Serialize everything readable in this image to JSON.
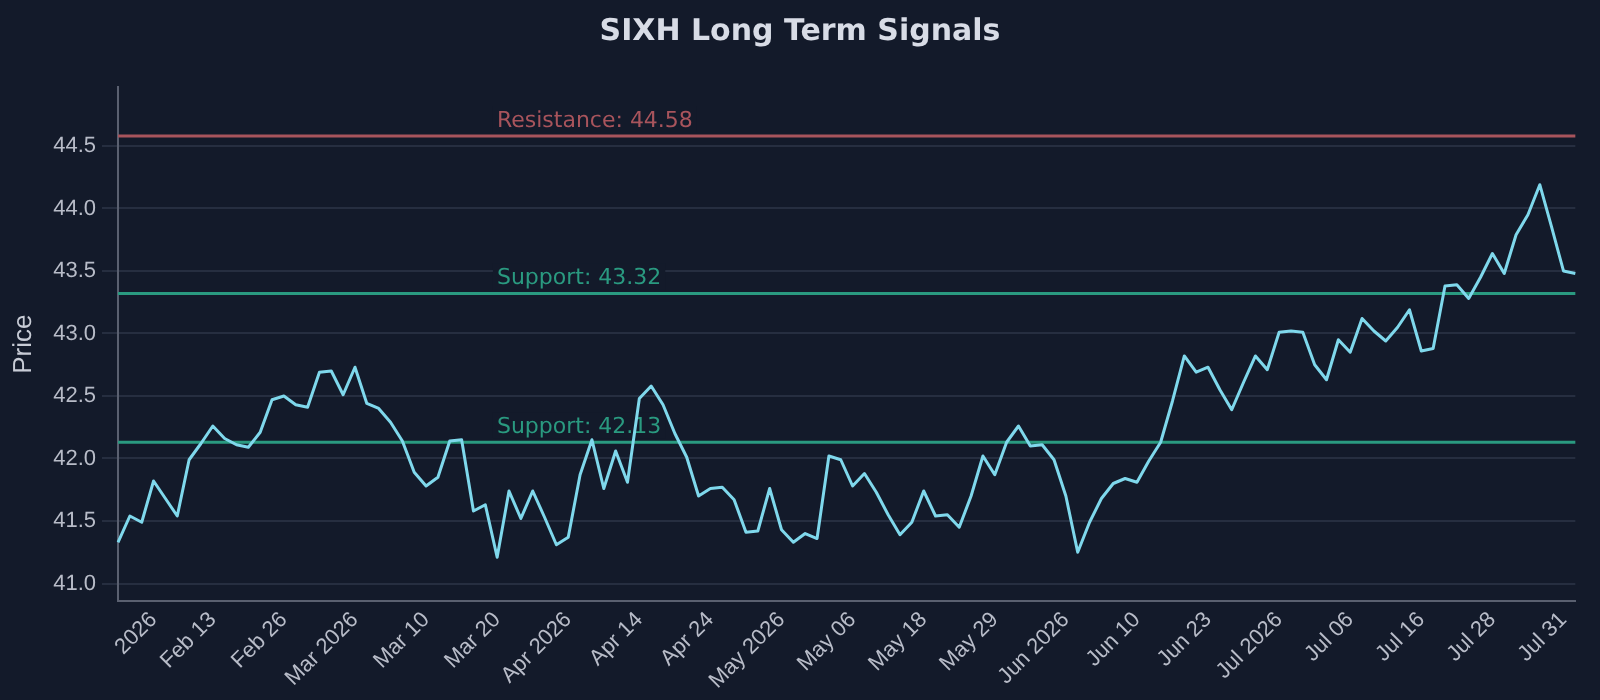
{
  "chart_data": {
    "type": "line",
    "title": "SIXH Long Term Signals",
    "ylabel": "Price",
    "categories": [
      null,
      null,
      null,
      "2026",
      null,
      null,
      null,
      null,
      "Feb 13",
      null,
      null,
      null,
      null,
      null,
      "Feb 26",
      null,
      null,
      null,
      null,
      null,
      "Mar 2026",
      null,
      null,
      null,
      null,
      null,
      "Mar 10",
      null,
      null,
      null,
      null,
      null,
      "Mar 20",
      null,
      null,
      null,
      null,
      null,
      "Apr 2026",
      null,
      null,
      null,
      null,
      null,
      "Apr 14",
      null,
      null,
      null,
      null,
      null,
      "Apr 24",
      null,
      null,
      null,
      null,
      null,
      "May 2026",
      null,
      null,
      null,
      null,
      null,
      "May 06",
      null,
      null,
      null,
      null,
      null,
      "May 18",
      null,
      null,
      null,
      null,
      null,
      "May 29",
      null,
      null,
      null,
      null,
      null,
      "Jun 2026",
      null,
      null,
      null,
      null,
      null,
      "Jun 10",
      null,
      null,
      null,
      null,
      null,
      "Jun 23",
      null,
      null,
      null,
      null,
      null,
      "Jul 2026",
      null,
      null,
      null,
      null,
      null,
      "Jul 06",
      null,
      null,
      null,
      null,
      null,
      "Jul 16",
      null,
      null,
      null,
      null,
      null,
      "Jul 28",
      null,
      null,
      null,
      null,
      null,
      "Jul 31",
      null
    ],
    "series": [
      {
        "color": "#7fd8ec",
        "values": [
          41.33,
          41.54,
          41.49,
          41.82,
          41.68,
          41.54,
          41.99,
          42.12,
          42.26,
          42.16,
          42.11,
          42.09,
          42.21,
          42.47,
          42.5,
          42.43,
          42.41,
          42.69,
          42.7,
          42.51,
          42.73,
          42.44,
          42.4,
          42.29,
          42.14,
          41.89,
          41.78,
          41.85,
          42.14,
          42.15,
          41.58,
          41.63,
          41.21,
          41.74,
          41.52,
          41.74,
          41.53,
          41.31,
          41.37,
          41.87,
          42.15,
          41.76,
          42.06,
          41.81,
          42.48,
          42.58,
          42.43,
          42.2,
          42.01,
          41.7,
          41.76,
          41.77,
          41.67,
          41.41,
          41.42,
          41.76,
          41.43,
          41.33,
          41.4,
          41.36,
          42.02,
          41.99,
          41.78,
          41.88,
          41.73,
          41.55,
          41.39,
          41.49,
          41.74,
          41.54,
          41.55,
          41.45,
          41.7,
          42.02,
          41.87,
          42.13,
          42.26,
          42.1,
          42.11,
          41.99,
          41.7,
          41.25,
          41.49,
          41.68,
          41.8,
          41.84,
          41.81,
          41.98,
          42.13,
          42.46,
          42.82,
          42.69,
          42.73,
          42.55,
          42.39,
          42.61,
          42.82,
          42.71,
          43.01,
          43.02,
          43.01,
          42.75,
          42.63,
          42.95,
          42.85,
          43.12,
          43.02,
          42.94,
          43.05,
          43.19,
          42.86,
          42.88,
          43.38,
          43.39,
          43.28,
          43.45,
          43.64,
          43.48,
          43.79,
          43.95,
          44.19,
          43.85,
          43.5,
          43.48
        ]
      }
    ],
    "ylim": [
      40.86,
      44.97
    ],
    "yticks": [
      {
        "value": 41,
        "label": "41.0"
      },
      {
        "value": 41.5,
        "label": "41.5"
      },
      {
        "value": 42,
        "label": "42.0"
      },
      {
        "value": 42.5,
        "label": "42.5"
      },
      {
        "value": 43,
        "label": "43.0"
      },
      {
        "value": 43.5,
        "label": "43.5"
      },
      {
        "value": 44,
        "label": "44.0"
      },
      {
        "value": 44.5,
        "label": "44.5"
      }
    ],
    "ref_lines": [
      {
        "axis": "y",
        "value": 44.58,
        "label": "Resistance: 44.58",
        "color": "#a8545c"
      },
      {
        "axis": "y",
        "value": 43.32,
        "label": "Support: 43.32",
        "color": "#2a9a80"
      },
      {
        "axis": "y",
        "value": 42.13,
        "label": "Support: 42.13",
        "color": "#2a9a80"
      }
    ],
    "grid": "y",
    "legend": false,
    "marker": "none",
    "line_style": "solid"
  }
}
